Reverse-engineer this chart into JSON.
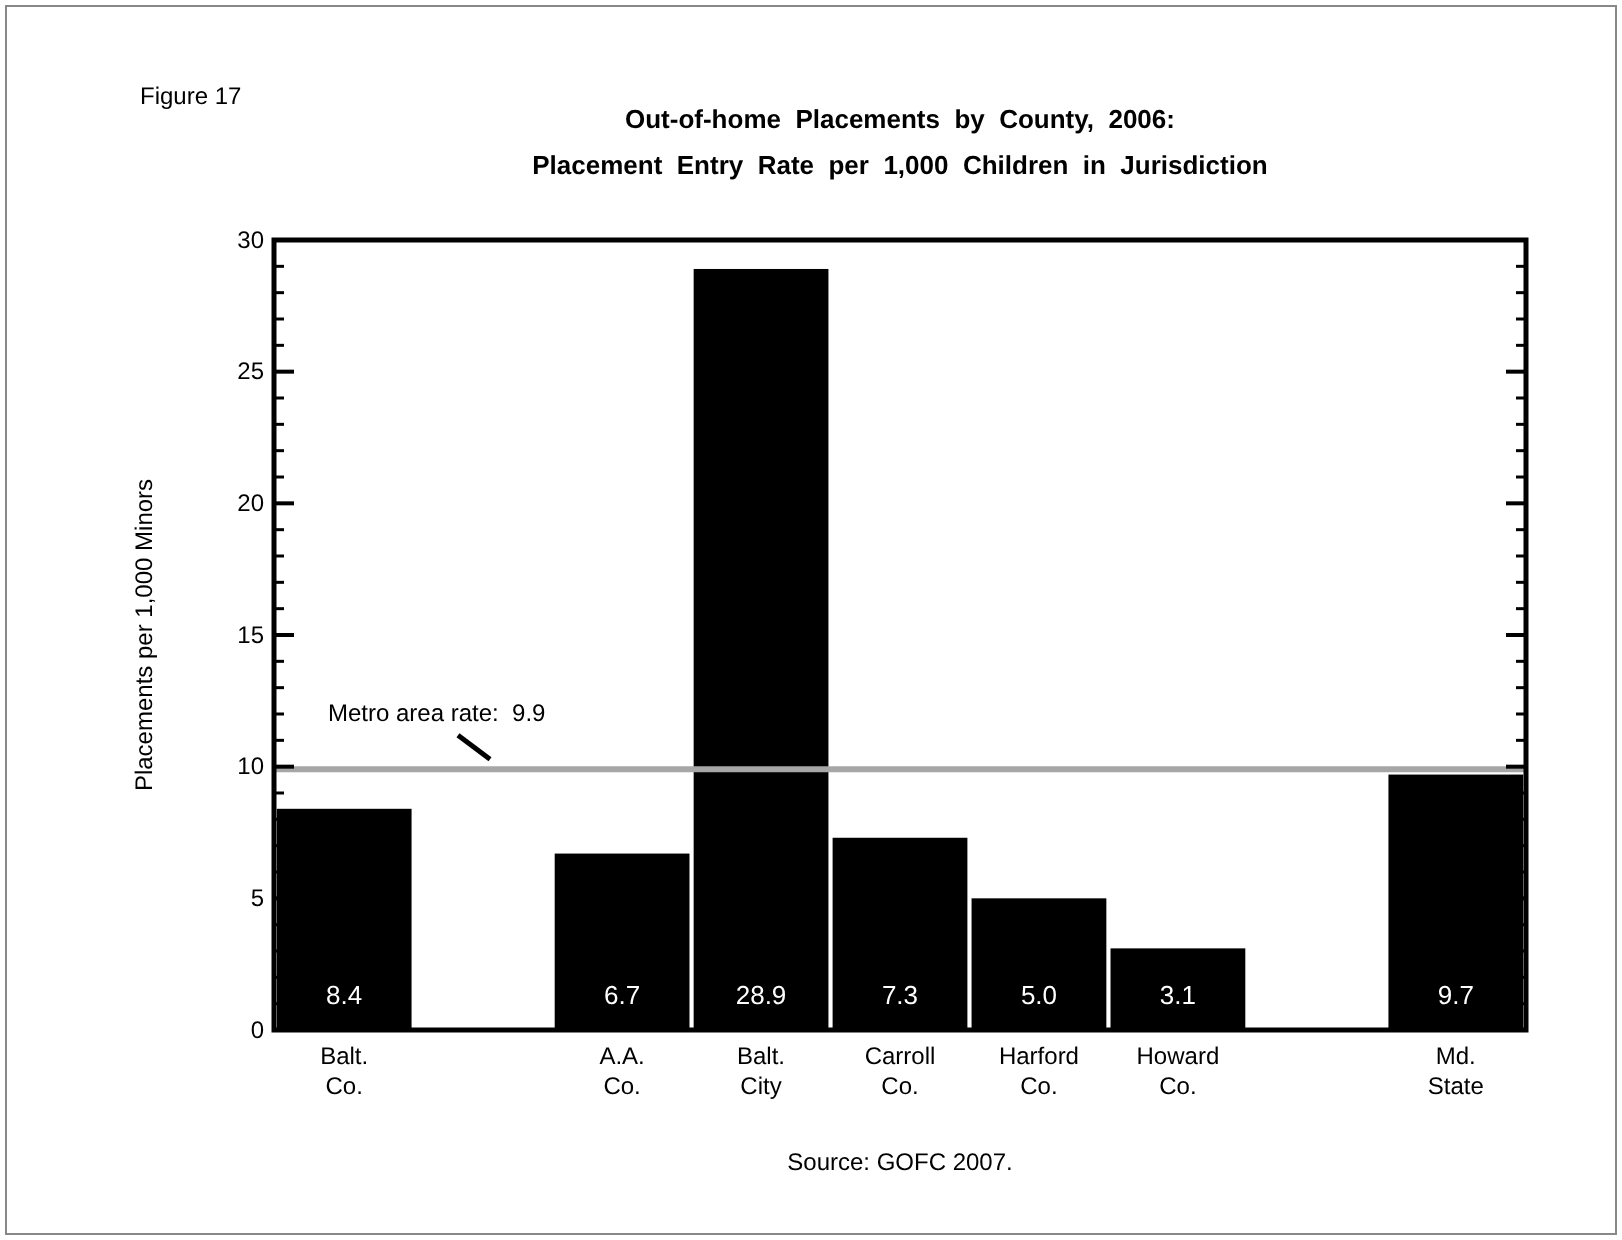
{
  "chart_data": {
    "type": "bar",
    "title": "Out-of-home  Placements  by  County,  2006:",
    "subtitle": "Placement  Entry  Rate  per  1,000  Children  in  Jurisdiction",
    "ylabel": "Placements per 1,000 Minors",
    "categories": [
      "Balt. Co.",
      null,
      "A.A. Co.",
      "Balt. City",
      "Carroll Co.",
      "Harford Co.",
      "Howard Co.",
      null,
      "Md. State"
    ],
    "values": [
      8.4,
      null,
      6.7,
      28.9,
      7.3,
      5.0,
      3.1,
      null,
      9.7
    ],
    "value_labels": [
      "8.4",
      null,
      "6.7",
      "28.9",
      "7.3",
      "5.0",
      "3.1",
      null,
      "9.7"
    ],
    "color": "#000000",
    "ylim": [
      0,
      30
    ],
    "yticks": [
      0,
      5,
      10,
      15,
      20,
      25,
      30
    ],
    "grid": false,
    "ref_lines": [
      {
        "axis": "y",
        "value": 9.9,
        "label": "Metro area rate:  9.9",
        "color": "#a6a6a6"
      }
    ],
    "annotations": [
      "Figure 17",
      "Source: GOFC 2007."
    ]
  }
}
